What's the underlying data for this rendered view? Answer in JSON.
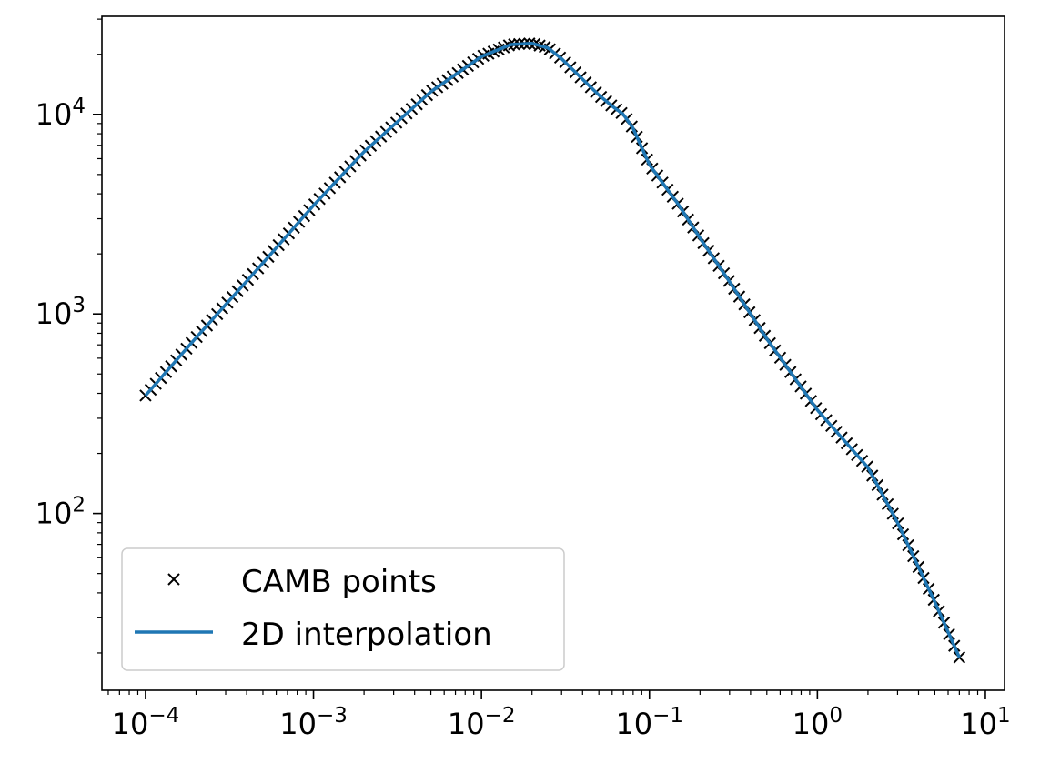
{
  "chart_data": {
    "type": "line",
    "title": "",
    "xlabel": "",
    "ylabel": "",
    "xscale": "log",
    "yscale": "log",
    "xlim": [
      5.5e-05,
      13
    ],
    "ylim": [
      13,
      31000
    ],
    "grid": false,
    "legend_placement": "lower-left",
    "x_ticks": [
      {
        "base": "10",
        "exp": "−4",
        "value": 0.0001
      },
      {
        "base": "10",
        "exp": "−3",
        "value": 0.001
      },
      {
        "base": "10",
        "exp": "−2",
        "value": 0.01
      },
      {
        "base": "10",
        "exp": "−1",
        "value": 0.1
      },
      {
        "base": "10",
        "exp": "0",
        "value": 1
      },
      {
        "base": "10",
        "exp": "1",
        "value": 10
      }
    ],
    "y_ticks": [
      {
        "base": "10",
        "exp": "2",
        "value": 100
      },
      {
        "base": "10",
        "exp": "3",
        "value": 1000
      },
      {
        "base": "10",
        "exp": "4",
        "value": 10000
      }
    ],
    "curve_x": [
      0.0001,
      0.0002,
      0.0005,
      0.001,
      0.002,
      0.005,
      0.01,
      0.015,
      0.02,
      0.025,
      0.03,
      0.04,
      0.05,
      0.06,
      0.07,
      0.08,
      0.1,
      0.15,
      0.2,
      0.3,
      0.5,
      1,
      2,
      3,
      5,
      7
    ],
    "curve_y": [
      390,
      760,
      1800,
      3500,
      6500,
      13000,
      19500,
      22400,
      22700,
      21500,
      19000,
      15000,
      12500,
      11000,
      10000,
      8500,
      5600,
      3500,
      2400,
      1450,
      750,
      330,
      170,
      90,
      36,
      19
    ],
    "series": [
      {
        "name": "CAMB points",
        "marker": "x",
        "color": "#000000",
        "points": 160
      },
      {
        "name": "2D interpolation",
        "marker": "line",
        "color": "#1f77b4"
      }
    ]
  }
}
